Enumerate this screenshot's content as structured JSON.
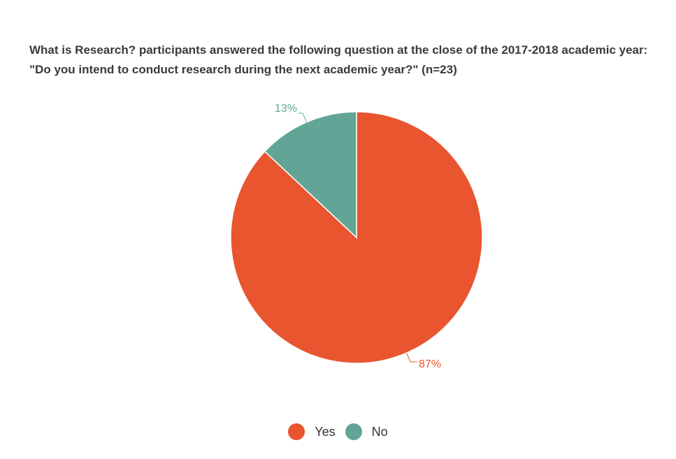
{
  "chart_data": {
    "type": "pie",
    "title": "What is Research? participants answered the following question at the close of the 2017-2018 academic year: \"Do you intend to conduct research during the next academic year?\" (n=23)",
    "categories": [
      "Yes",
      "No"
    ],
    "values": [
      87,
      13
    ],
    "data_labels": [
      "87%",
      "13%"
    ],
    "colors": [
      "#e8552f",
      "#62a596"
    ],
    "legend_position": "bottom"
  }
}
